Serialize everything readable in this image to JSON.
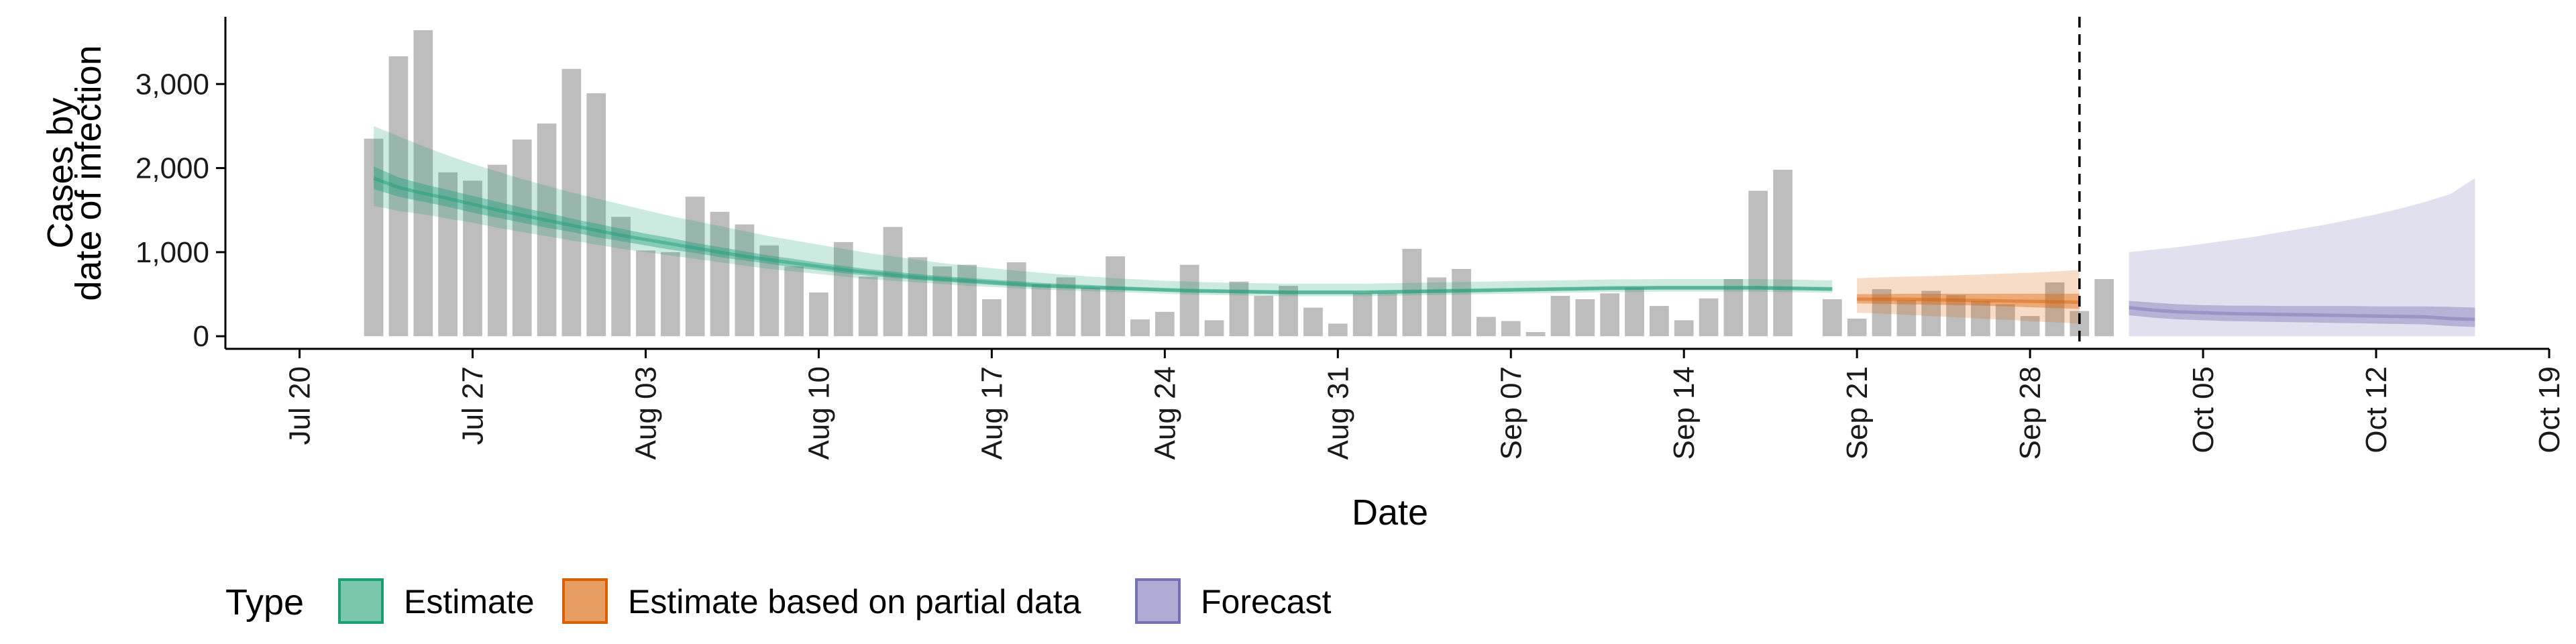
{
  "chart_data": {
    "type": "bar",
    "xlabel": "Date",
    "ylabel": [
      "Cases by",
      "date of infection"
    ],
    "ylim": [
      -150,
      3800
    ],
    "xlim": [
      "2020-07-17",
      "2020-10-19"
    ],
    "y_ticks": [
      0,
      1000,
      2000,
      3000
    ],
    "y_tick_labels": [
      "0",
      "1,000",
      "2,000",
      "3,000"
    ],
    "x_ticks": [
      "2020-07-20",
      "2020-07-27",
      "2020-08-03",
      "2020-08-10",
      "2020-08-17",
      "2020-08-24",
      "2020-08-31",
      "2020-09-07",
      "2020-09-14",
      "2020-09-21",
      "2020-09-28",
      "2020-10-05",
      "2020-10-12",
      "2020-10-19"
    ],
    "x_tick_labels": [
      "Jul 20",
      "Jul 27",
      "Aug 03",
      "Aug 10",
      "Aug 17",
      "Aug 24",
      "Aug 31",
      "Sep 07",
      "Sep 14",
      "Sep 21",
      "Sep 28",
      "Oct 05",
      "Oct 12",
      "Oct 19"
    ],
    "grid": false,
    "legend_position": "bottom",
    "bars": {
      "start_date": "2020-07-23",
      "values": [
        2350,
        3330,
        3640,
        1950,
        1850,
        2040,
        2340,
        2530,
        3180,
        2890,
        1420,
        1020,
        1000,
        1660,
        1480,
        1330,
        1080,
        830,
        520,
        1120,
        710,
        1300,
        940,
        830,
        850,
        440,
        880,
        620,
        700,
        580,
        950,
        200,
        290,
        850,
        190,
        650,
        480,
        600,
        340,
        150,
        510,
        510,
        1040,
        700,
        800,
        230,
        180,
        50,
        480,
        440,
        510,
        580,
        360,
        190,
        450,
        680,
        1730,
        1980,
        0,
        440,
        210,
        560,
        430,
        540,
        490,
        420,
        380,
        240,
        640,
        300,
        680
      ]
    },
    "forecast_start_line": "2020-09-30",
    "series": [
      {
        "name": "Estimate",
        "color": "#1b9e77",
        "start_date": "2020-07-23",
        "median": [
          1880,
          1770,
          1700,
          1640,
          1570,
          1500,
          1440,
          1380,
          1320,
          1260,
          1200,
          1150,
          1100,
          1050,
          1000,
          950,
          910,
          870,
          830,
          790,
          760,
          730,
          700,
          680,
          660,
          640,
          620,
          600,
          590,
          580,
          570,
          560,
          550,
          540,
          535,
          530,
          525,
          520,
          520,
          520,
          520,
          525,
          530,
          535,
          540,
          545,
          550,
          555,
          560,
          565,
          570,
          572,
          575,
          575,
          575,
          575,
          575,
          570,
          565,
          560
        ],
        "lower_50": [
          1750,
          1660,
          1600,
          1540,
          1470,
          1410,
          1350,
          1290,
          1240,
          1180,
          1130,
          1080,
          1030,
          990,
          940,
          900,
          860,
          820,
          785,
          750,
          720,
          695,
          670,
          650,
          630,
          610,
          595,
          580,
          570,
          560,
          550,
          540,
          530,
          520,
          515,
          510,
          505,
          500,
          500,
          500,
          500,
          505,
          510,
          515,
          520,
          525,
          530,
          535,
          540,
          545,
          550,
          552,
          555,
          555,
          555,
          555,
          555,
          550,
          545,
          540
        ],
        "upper_50": [
          2020,
          1890,
          1810,
          1740,
          1670,
          1600,
          1530,
          1470,
          1400,
          1340,
          1280,
          1220,
          1170,
          1110,
          1060,
          1010,
          960,
          920,
          875,
          835,
          800,
          770,
          740,
          715,
          695,
          675,
          655,
          635,
          620,
          610,
          595,
          585,
          575,
          565,
          560,
          555,
          550,
          545,
          545,
          545,
          545,
          550,
          555,
          560,
          565,
          570,
          575,
          580,
          585,
          590,
          595,
          597,
          600,
          600,
          600,
          600,
          600,
          595,
          590,
          585
        ],
        "lower_90": [
          1550,
          1490,
          1450,
          1400,
          1350,
          1290,
          1240,
          1190,
          1140,
          1090,
          1040,
          1000,
          960,
          920,
          880,
          840,
          800,
          770,
          740,
          710,
          680,
          660,
          640,
          620,
          600,
          585,
          570,
          555,
          545,
          535,
          525,
          515,
          505,
          495,
          490,
          485,
          480,
          475,
          475,
          475,
          475,
          480,
          485,
          490,
          495,
          500,
          505,
          510,
          515,
          520,
          525,
          527,
          530,
          530,
          530,
          530,
          530,
          525,
          520,
          515
        ],
        "upper_90": [
          2500,
          2380,
          2260,
          2150,
          2050,
          1960,
          1870,
          1790,
          1710,
          1640,
          1570,
          1500,
          1430,
          1370,
          1310,
          1250,
          1190,
          1140,
          1090,
          1040,
          990,
          950,
          910,
          870,
          840,
          810,
          780,
          755,
          730,
          710,
          690,
          675,
          660,
          650,
          640,
          635,
          630,
          625,
          625,
          625,
          625,
          630,
          635,
          640,
          645,
          650,
          655,
          660,
          665,
          670,
          675,
          677,
          680,
          680,
          680,
          680,
          680,
          675,
          670,
          665
        ]
      },
      {
        "name": "Estimate based on partial data",
        "color": "#d95f02",
        "start_date": "2020-09-21",
        "median": [
          440,
          440,
          440,
          435,
          430,
          425,
          420,
          415,
          410,
          405
        ],
        "lower_50": [
          390,
          385,
          380,
          375,
          370,
          365,
          355,
          345,
          335,
          325
        ],
        "upper_50": [
          500,
          500,
          505,
          505,
          505,
          505,
          505,
          505,
          505,
          505
        ],
        "lower_90": [
          280,
          270,
          255,
          240,
          225,
          210,
          195,
          180,
          165,
          150
        ],
        "upper_90": [
          690,
          700,
          710,
          715,
          725,
          735,
          745,
          755,
          770,
          790
        ]
      },
      {
        "name": "Forecast",
        "color": "#7570b3",
        "start_date": "2020-10-02",
        "median": [
          340,
          310,
          290,
          280,
          270,
          265,
          260,
          255,
          250,
          245,
          240,
          235,
          230,
          210,
          200
        ],
        "lower_50": [
          250,
          220,
          200,
          190,
          180,
          175,
          170,
          165,
          160,
          155,
          150,
          145,
          140,
          120,
          110
        ],
        "upper_50": [
          420,
          400,
          380,
          370,
          365,
          365,
          360,
          360,
          360,
          360,
          355,
          355,
          355,
          350,
          340
        ],
        "lower_90": [
          0,
          0,
          0,
          0,
          0,
          0,
          0,
          0,
          0,
          0,
          0,
          0,
          0,
          0,
          0
        ],
        "upper_90": [
          1000,
          1030,
          1060,
          1100,
          1140,
          1180,
          1230,
          1280,
          1330,
          1390,
          1450,
          1520,
          1600,
          1690,
          1880
        ]
      }
    ]
  },
  "legend": {
    "title": "Type",
    "items": [
      {
        "label": "Estimate",
        "fill": "#7ac7ab",
        "stroke": "#1b9e77"
      },
      {
        "label": "Estimate based on partial data",
        "fill": "#e89e63",
        "stroke": "#d95f02"
      },
      {
        "label": "Forecast",
        "fill": "#aeabd4",
        "stroke": "#7570b3"
      }
    ]
  }
}
